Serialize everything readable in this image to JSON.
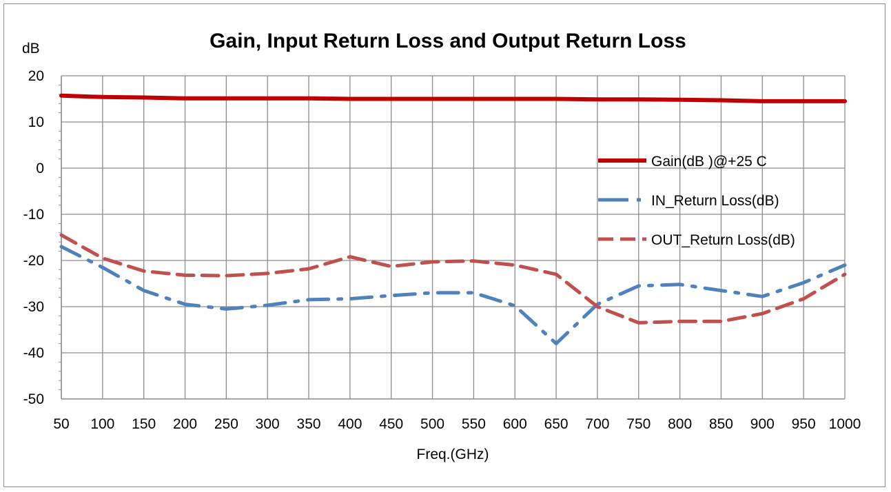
{
  "chart_data": {
    "type": "line",
    "title": "Gain, Input Return Loss and Output Return Loss",
    "ylabel": "dB",
    "xlabel": "Freq.(GHz)",
    "ylim": [
      -50,
      20
    ],
    "xlim": [
      50,
      1000
    ],
    "y_ticks": [
      "20",
      "10",
      "0",
      "-10",
      "-20",
      "-30",
      "-40",
      "-50"
    ],
    "x_ticks": [
      "50",
      "100",
      "150",
      "200",
      "250",
      "300",
      "350",
      "400",
      "450",
      "500",
      "550",
      "600",
      "650",
      "700",
      "750",
      "800",
      "850",
      "900",
      "950",
      "1000"
    ],
    "grid": true,
    "legend_position": "right",
    "x": [
      50,
      100,
      150,
      200,
      250,
      300,
      350,
      400,
      450,
      500,
      550,
      600,
      650,
      700,
      750,
      800,
      850,
      900,
      950,
      1000
    ],
    "series": [
      {
        "name": "Gain(dB )@+25 C",
        "color": "#c00000",
        "style": "solid",
        "values": [
          15.7,
          15.4,
          15.3,
          15.1,
          15.1,
          15.1,
          15.1,
          15.0,
          15.0,
          15.0,
          15.0,
          15.0,
          15.0,
          14.9,
          14.9,
          14.8,
          14.7,
          14.5,
          14.5,
          14.5
        ]
      },
      {
        "name": "IN_Return Loss(dB)",
        "color": "#4f81bd",
        "style": "dash-dot",
        "values": [
          -17,
          -21.5,
          -26.5,
          -29.5,
          -30.5,
          -29.7,
          -28.5,
          -28.3,
          -27.6,
          -27.0,
          -27.0,
          -29.8,
          -38.0,
          -29.5,
          -25.5,
          -25.2,
          -26.5,
          -27.8,
          -24.8,
          -21.0
        ]
      },
      {
        "name": "OUT_Return Loss(dB)",
        "color": "#c0504d",
        "style": "dashed",
        "values": [
          -14.5,
          -19.5,
          -22.3,
          -23.2,
          -23.3,
          -22.8,
          -21.8,
          -19.2,
          -21.3,
          -20.3,
          -20.1,
          -21.0,
          -23.0,
          -30.0,
          -33.5,
          -33.2,
          -33.2,
          -31.5,
          -28.3,
          -23.0
        ]
      }
    ]
  }
}
